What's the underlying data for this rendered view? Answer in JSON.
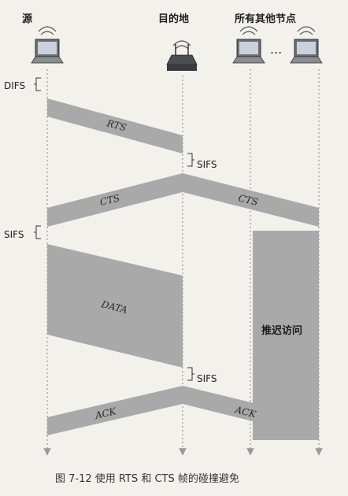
{
  "labels": {
    "source": "源",
    "destination": "目的地",
    "others": "所有其他节点",
    "ellipsis": "...",
    "difs": "DIFS",
    "sifs": "SIFS",
    "defer": "推迟访问"
  },
  "frames": {
    "rts": "RTS",
    "cts": "CTS",
    "data": "DATA",
    "ack": "ACK"
  },
  "caption": "图 7-12  使用 RTS 和 CTS 帧的碰撞避免",
  "icons": [
    "laptop-icon",
    "wireless-router-icon",
    "wifi-signal-icon"
  ],
  "colors": {
    "band": "#a9a9a9",
    "background": "#f3f1ec"
  }
}
